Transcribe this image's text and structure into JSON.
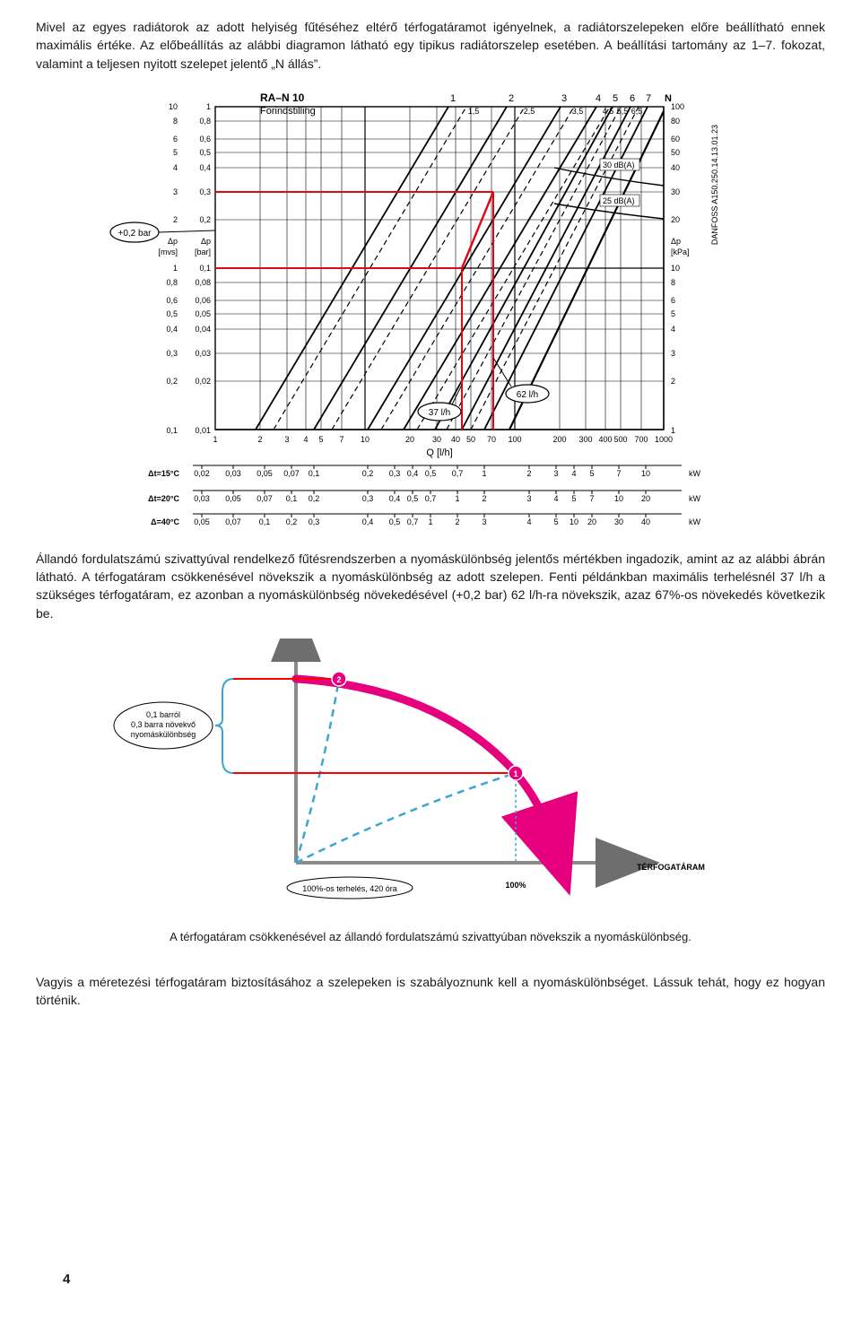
{
  "paragraphs": {
    "p1": "Mivel az egyes radiátorok az adott helyiség fűtéséhez eltérő térfogatáramot igényelnek, a radiátorszelepeken előre beállítható ennek maximális értéke. Az előbeállítás az alábbi diagramon látható egy tipikus radiátorszelep esetében. A beállítási tartomány az 1–7. fokozat, valamint a teljesen nyitott szelepet jelentő „N állás”.",
    "p2": "Állandó fordulatszámú szivattyúval rendelkező fűtésrendszerben a nyomáskülönbség jelentős mértékben ingadozik, amint az az alábbi ábrán látható. A térfogatáram csökkenésével növekszik a nyomáskülönbség az adott szelepen. Fenti példánkban maximális terhelésnél 37 l/h a szükséges térfogatáram, ez azonban a nyomáskülönbség növekedésével (+0,2 bar) 62 l/h-ra növekszik, azaz 67%-os növekedés következik be.",
    "caption": "A térfogatáram csökkenésével az állandó fordulatszámú szivattyúban növekszik a nyomáskülönbség.",
    "p3": "Vagyis a méretezési térfogatáram biztosításához a szelepeken is szabályoznunk kell a nyomáskülönbséget. Lássuk tehát, hogy ez hogyan történik."
  },
  "chart1": {
    "title": "RA–N 10",
    "subtitle": "Forindstilling",
    "left_callout": "+0,2 bar",
    "mid_callouts": {
      "a": "37 l/h",
      "b": "62 l/h"
    },
    "db_labels": {
      "a": "30 dB(A)",
      "b": "25 dB(A)"
    },
    "curves_top": [
      "1",
      "1,5",
      "2",
      "2,5",
      "3",
      "3,5",
      "4",
      "4,5",
      "5",
      "5,5",
      "6",
      "6,5",
      "7",
      "N"
    ],
    "y_left_outer_ticks": [
      "10",
      "8",
      "6",
      "5",
      "4",
      "3",
      "2",
      "1",
      "0,8",
      "0,6",
      "0,5",
      "0,4",
      "0,3",
      "0,2",
      "0,1"
    ],
    "y_left_outer_unit_a": "Δp",
    "y_left_outer_unit_b": "[mvs]",
    "y_left_inner_ticks": [
      "1",
      "0,8",
      "0,6",
      "0,5",
      "0,4",
      "0,3",
      "0,2",
      "0,1",
      "0,08",
      "0,06",
      "0,05",
      "0,04",
      "0,03",
      "0,02",
      "0,01"
    ],
    "y_left_inner_unit_a": "Δp",
    "y_left_inner_unit_b": "[bar]",
    "y_right_ticks": [
      "100",
      "80",
      "60",
      "50",
      "40",
      "30",
      "20",
      "10",
      "8",
      "6",
      "5",
      "4",
      "3",
      "2",
      "1"
    ],
    "y_right_unit_a": "Δp",
    "y_right_unit_b": "[kPa]",
    "right_brand": "DANFOSS\nA150.250.14.13.01.23",
    "x_ticks": [
      "1",
      "2",
      "3",
      "4",
      "5",
      "7",
      "10",
      "20",
      "30",
      "40",
      "50",
      "70",
      "100",
      "200",
      "300",
      "400",
      "500",
      "700",
      "1000"
    ],
    "x_unit": "Q [l/h]",
    "bottom_scales": [
      {
        "label": "Δt=15°C",
        "ticks": [
          "0,02",
          "0,03",
          "0,05",
          "0,07",
          "0,1",
          "0,2",
          "0,3",
          "0,4",
          "0,5",
          "0,7",
          "1",
          "2",
          "3",
          "4",
          "5",
          "7",
          "10"
        ],
        "unit": "kW"
      },
      {
        "label": "Δt=20°C",
        "ticks": [
          "0,03",
          "0,05",
          "0,07",
          "0,1",
          "0,2",
          "0,3",
          "0,4",
          "0,5",
          "0,7",
          "1",
          "2",
          "3",
          "4",
          "5",
          "7",
          "10",
          "20"
        ],
        "unit": "kW"
      },
      {
        "label": "Δ=40°C",
        "ticks": [
          "0,05",
          "0,07",
          "0,1",
          "0,2",
          "0,3",
          "0,4",
          "0,5",
          "0,7",
          "1",
          "2",
          "3",
          "4",
          "5",
          "10",
          "20",
          "30",
          "40"
        ],
        "unit": "kW"
      }
    ],
    "colors": {
      "grid": "#000000",
      "curves": "#000000",
      "highlight": "#e30613",
      "bg": "#ffffff"
    }
  },
  "chart2": {
    "left_bubble": "0,1 barról\n0,3 barra növekvő\nnyomáskülönbség",
    "bottom_bubble": "100%-os terhelés, 420 óra",
    "points": {
      "p1": "1",
      "p2": "2"
    },
    "x_label_100": "100%",
    "x_axis_title": "TÉRFOGATÁRAM",
    "colors": {
      "pump_curve": "#e6007e",
      "system_curve": "#3ba7d1",
      "bracket": "#3ba7d1",
      "op_line": "#ff0000",
      "axis": "#8a8a8a",
      "axis_head": "#6e6e6e"
    }
  },
  "page_number": "4"
}
